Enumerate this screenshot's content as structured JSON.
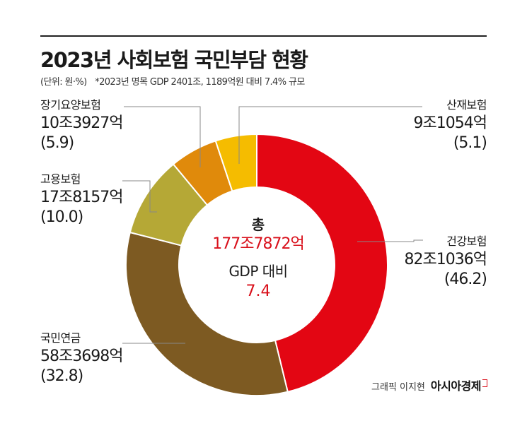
{
  "header": {
    "title": "2023년 사회보험 국민부담 현황",
    "unit_note": "(단위: 원·%)",
    "gdp_note": "*2023년 명목 GDP 2401조, 1189억원 대비 7.4% 규모"
  },
  "center": {
    "total_label": "총",
    "total_value": "177조7872억",
    "gdp_label": "GDP 대비",
    "gdp_value": "7.4"
  },
  "credit": {
    "graphic": "그래픽 이지현",
    "brand": "아시아경제"
  },
  "colors": {
    "health": "#e30613",
    "pension": "#7d5a22",
    "employment": "#b5a836",
    "longterm": "#e08a0b",
    "industrial": "#f5bc00"
  },
  "chart_data": {
    "type": "pie",
    "title": "2023년 사회보험 국민부담 현황",
    "unit": "원·%",
    "donut": true,
    "start": "top",
    "direction": "clockwise",
    "slices": [
      {
        "key": "health",
        "label": "건강보험",
        "amount": "82조1036억",
        "percent_label": "(46.2)",
        "value": 46.2
      },
      {
        "key": "pension",
        "label": "국민연금",
        "amount": "58조3698억",
        "percent_label": "(32.8)",
        "value": 32.8
      },
      {
        "key": "employment",
        "label": "고용보험",
        "amount": "17조8157억",
        "percent_label": "(10.0)",
        "value": 10.0
      },
      {
        "key": "longterm",
        "label": "장기요양보험",
        "amount": "10조3927억",
        "percent_label": "(5.9)",
        "value": 5.9
      },
      {
        "key": "industrial",
        "label": "산재보험",
        "amount": "9조1054억",
        "percent_label": "(5.1)",
        "value": 5.1
      }
    ]
  }
}
